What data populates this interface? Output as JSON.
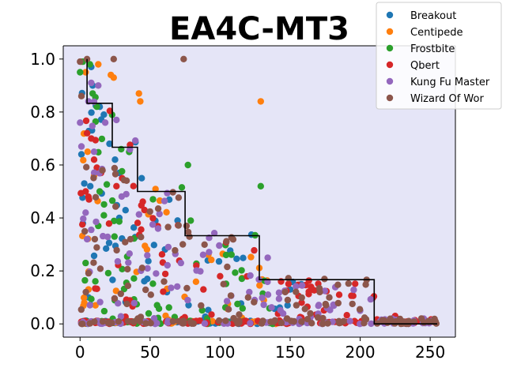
{
  "chart_data": {
    "type": "scatter",
    "title": "EA4C-MT3",
    "xlabel": "",
    "ylabel": "",
    "xlim": [
      -12,
      268
    ],
    "ylim": [
      -0.05,
      1.05
    ],
    "xticks": [
      0,
      50,
      100,
      150,
      200,
      250
    ],
    "yticks": [
      0.0,
      0.2,
      0.4,
      0.6,
      0.8,
      1.0
    ],
    "ytick_labels": [
      "0.0",
      "0.2",
      "0.4",
      "0.6",
      "0.8",
      "1.0"
    ],
    "plot_bg": "#e5e5f7",
    "legend_position": "top-right",
    "series": [
      {
        "name": "Breakout",
        "color": "#1f77b4",
        "seed": 11,
        "n": 85,
        "xmax": 160,
        "highlights": [
          [
            1,
            0.64
          ],
          [
            2,
            0.38
          ],
          [
            3,
            0.53
          ],
          [
            8,
            0.97
          ],
          [
            9,
            0.9
          ],
          [
            14,
            0.82
          ],
          [
            17,
            0.79
          ],
          [
            21,
            0.68
          ],
          [
            25,
            0.62
          ],
          [
            28,
            0.57
          ],
          [
            28,
            0.4
          ],
          [
            44,
            0.55
          ],
          [
            48,
            0.17
          ],
          [
            62,
            0.12
          ],
          [
            150,
            0.13
          ],
          [
            158,
            0.15
          ]
        ]
      },
      {
        "name": "Centipede",
        "color": "#ff7f0e",
        "seed": 23,
        "n": 70,
        "xmax": 140,
        "highlights": [
          [
            1,
            0.99
          ],
          [
            4,
            0.95
          ],
          [
            13,
            0.98
          ],
          [
            22,
            0.94
          ],
          [
            24,
            0.93
          ],
          [
            10,
            0.56
          ],
          [
            42,
            0.87
          ],
          [
            43,
            0.84
          ],
          [
            129,
            0.84
          ],
          [
            3,
            0.08
          ],
          [
            6,
            0.13
          ],
          [
            11,
            0.07
          ]
        ]
      },
      {
        "name": "Frostbite",
        "color": "#2ca02c",
        "seed": 37,
        "n": 95,
        "xmax": 140,
        "highlights": [
          [
            0,
            0.95
          ],
          [
            2,
            0.99
          ],
          [
            7,
            0.98
          ],
          [
            9,
            0.87
          ],
          [
            12,
            0.82
          ],
          [
            14,
            0.5
          ],
          [
            17,
            0.41
          ],
          [
            77,
            0.6
          ],
          [
            129,
            0.52
          ],
          [
            79,
            0.39
          ],
          [
            4,
            0.23
          ],
          [
            13,
            0.37
          ]
        ]
      },
      {
        "name": "Qbert",
        "color": "#d62728",
        "seed": 53,
        "n": 160,
        "xmax": 252,
        "highlights": [
          [
            4,
            0.5
          ],
          [
            6,
            0.48
          ],
          [
            5,
            0.72
          ],
          [
            8,
            0.7
          ],
          [
            10,
            0.62
          ],
          [
            12,
            0.59
          ],
          [
            15,
            0.57
          ],
          [
            26,
            0.52
          ],
          [
            30,
            0.55
          ],
          [
            46,
            0.43
          ],
          [
            83,
            0.22
          ],
          [
            100,
            0.18
          ],
          [
            165,
            0.14
          ],
          [
            185,
            0.11
          ],
          [
            225,
            0.03
          ],
          [
            245,
            0.01
          ]
        ]
      },
      {
        "name": "Kung Fu Master",
        "color": "#9467bd",
        "seed": 71,
        "n": 150,
        "xmax": 255,
        "highlights": [
          [
            0,
            0.76
          ],
          [
            1,
            0.67
          ],
          [
            4,
            0.42
          ],
          [
            5,
            0.32
          ],
          [
            6,
            0.84
          ],
          [
            8,
            0.91
          ],
          [
            10,
            0.65
          ],
          [
            13,
            0.9
          ],
          [
            18,
            0.76
          ],
          [
            26,
            0.77
          ],
          [
            33,
            0.49
          ],
          [
            63,
            0.29
          ],
          [
            72,
            0.23
          ],
          [
            134,
            0.25
          ],
          [
            200,
            0.05
          ],
          [
            250,
            0.01
          ]
        ]
      },
      {
        "name": "Wizard Of Wor",
        "color": "#8c564b",
        "seed": 97,
        "n": 150,
        "xmax": 255,
        "highlights": [
          [
            0,
            0.99
          ],
          [
            1,
            0.86
          ],
          [
            5,
            1.0
          ],
          [
            24,
            1.0
          ],
          [
            74,
            1.0
          ],
          [
            16,
            0.58
          ],
          [
            36,
            0.32
          ],
          [
            76,
            0.37
          ],
          [
            60,
            0.16
          ],
          [
            120,
            0.1
          ]
        ]
      }
    ],
    "step_line": {
      "color": "#000000",
      "points": [
        [
          5,
          1.0
        ],
        [
          5,
          0.833
        ],
        [
          23,
          0.833
        ],
        [
          23,
          0.667
        ],
        [
          41,
          0.667
        ],
        [
          41,
          0.5
        ],
        [
          75,
          0.5
        ],
        [
          75,
          0.333
        ],
        [
          128,
          0.333
        ],
        [
          128,
          0.167
        ],
        [
          210,
          0.167
        ],
        [
          210,
          0.0
        ],
        [
          255,
          0.0
        ]
      ]
    }
  }
}
